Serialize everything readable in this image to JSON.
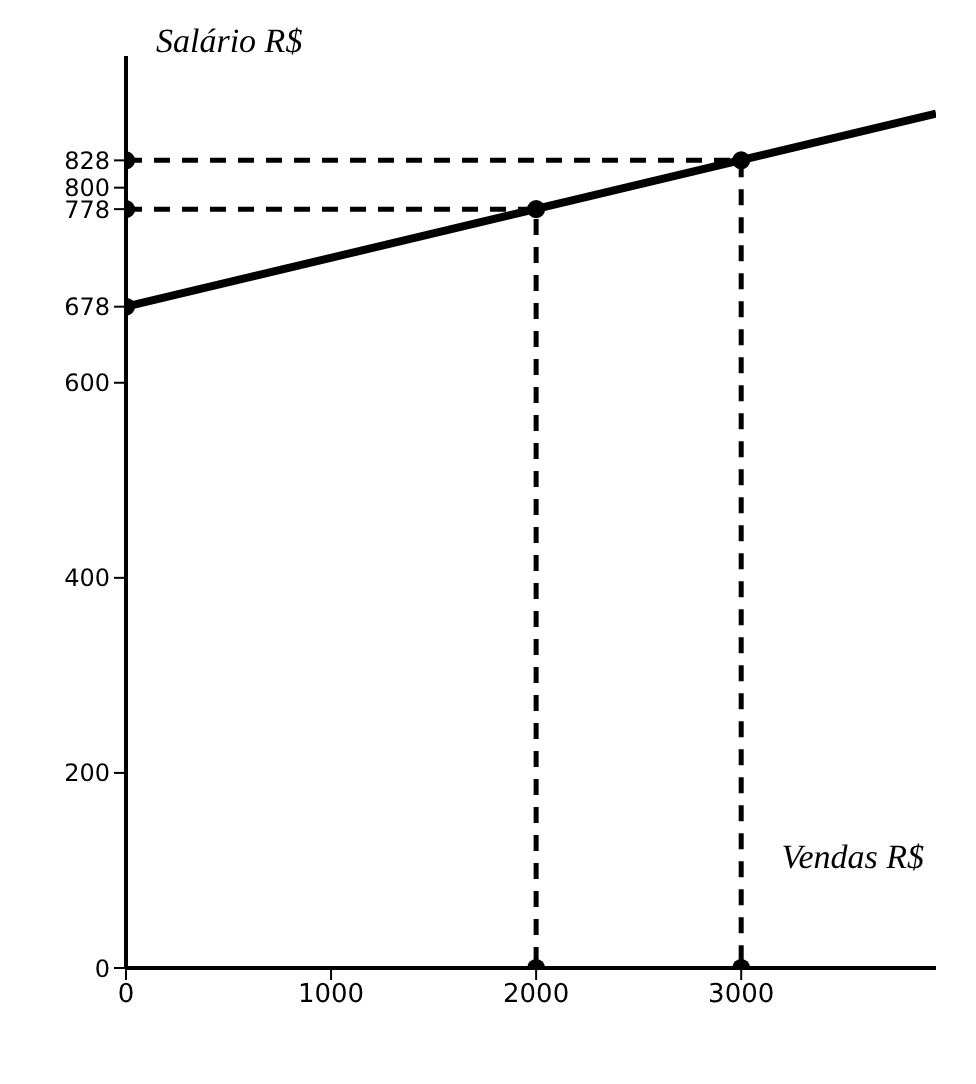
{
  "chart_data": {
    "type": "line",
    "xlabel": "Vendas R$",
    "ylabel": "Salário R$",
    "xlim": [
      0,
      3950
    ],
    "ylim": [
      0,
      935
    ],
    "xticks": [
      0,
      1000,
      2000,
      3000
    ],
    "yticks": [
      0,
      200,
      400,
      600,
      678,
      778,
      800,
      828
    ],
    "grid": false,
    "series": [
      {
        "color": "#000000",
        "line_style": "solid",
        "marker": "none",
        "x": [
          0,
          3950
        ],
        "values": [
          678,
          876
        ]
      },
      {
        "color": "#000000",
        "line_style": "dashed",
        "marker": "none",
        "x": [
          0,
          2000,
          2000
        ],
        "values": [
          778,
          778,
          0
        ]
      },
      {
        "color": "#000000",
        "line_style": "dashed",
        "marker": "none",
        "x": [
          0,
          3000,
          3000
        ],
        "values": [
          828,
          828,
          0
        ]
      },
      {
        "type": "scatter",
        "color": "#000000",
        "marker": "circle",
        "x": [
          0,
          2000,
          3000,
          0,
          0,
          2000,
          3000
        ],
        "values": [
          678,
          778,
          828,
          778,
          828,
          0,
          0
        ]
      }
    ]
  }
}
